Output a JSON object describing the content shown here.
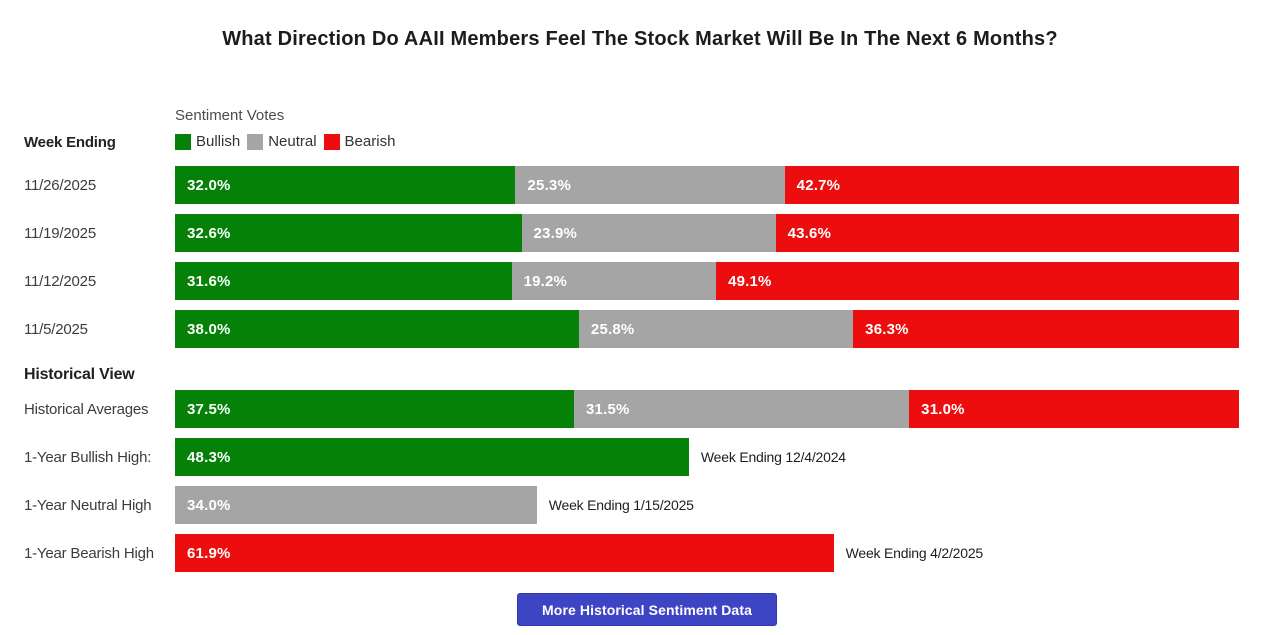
{
  "page": {
    "title": "What Direction Do AAII Members Feel The Stock Market Will Be In The Next 6 Months?"
  },
  "chart_data": {
    "type": "bar",
    "orientation": "horizontal",
    "stacked": true,
    "unit": "%",
    "xlim": [
      0,
      100
    ],
    "grid": false,
    "legend_position": "top-left",
    "title": "What Direction Do AAII Members Feel The Stock Market Will Be In The Next 6 Months?",
    "legend_title": "Sentiment Votes",
    "series_names": [
      "Bullish",
      "Neutral",
      "Bearish"
    ],
    "colors": {
      "Bullish": "#048106",
      "Neutral": "#a5a5a5",
      "Bearish": "#ec0d0e"
    },
    "weekly": {
      "axis_label": "Week Ending",
      "rows": [
        {
          "label": "11/26/2025",
          "values": [
            32.0,
            25.3,
            42.7
          ],
          "display": [
            "32.0%",
            "25.3%",
            "42.7%"
          ]
        },
        {
          "label": "11/19/2025",
          "values": [
            32.6,
            23.9,
            43.6
          ],
          "display": [
            "32.6%",
            "23.9%",
            "43.6%"
          ]
        },
        {
          "label": "11/12/2025",
          "values": [
            31.6,
            19.2,
            49.1
          ],
          "display": [
            "31.6%",
            "19.2%",
            "49.1%"
          ]
        },
        {
          "label": "11/5/2025",
          "values": [
            38.0,
            25.8,
            36.3
          ],
          "display": [
            "38.0%",
            "25.8%",
            "36.3%"
          ]
        }
      ]
    },
    "historical": {
      "section_label": "Historical View",
      "stacked_row": {
        "label": "Historical Averages",
        "values": [
          37.5,
          31.5,
          31.0
        ],
        "display": [
          "37.5%",
          "31.5%",
          "31.0%"
        ]
      },
      "single_rows": [
        {
          "label": "1-Year Bullish High:",
          "series": "Bullish",
          "value": 48.3,
          "display": "48.3%",
          "annotation": "Week Ending 12/4/2024"
        },
        {
          "label": "1-Year Neutral High",
          "series": "Neutral",
          "value": 34.0,
          "display": "34.0%",
          "annotation": "Week Ending 1/15/2025"
        },
        {
          "label": "1-Year Bearish High",
          "series": "Bearish",
          "value": 61.9,
          "display": "61.9%",
          "annotation": "Week Ending 4/2/2025"
        }
      ]
    }
  },
  "button": {
    "label": "More Historical Sentiment Data",
    "color": "#3d45c5"
  }
}
